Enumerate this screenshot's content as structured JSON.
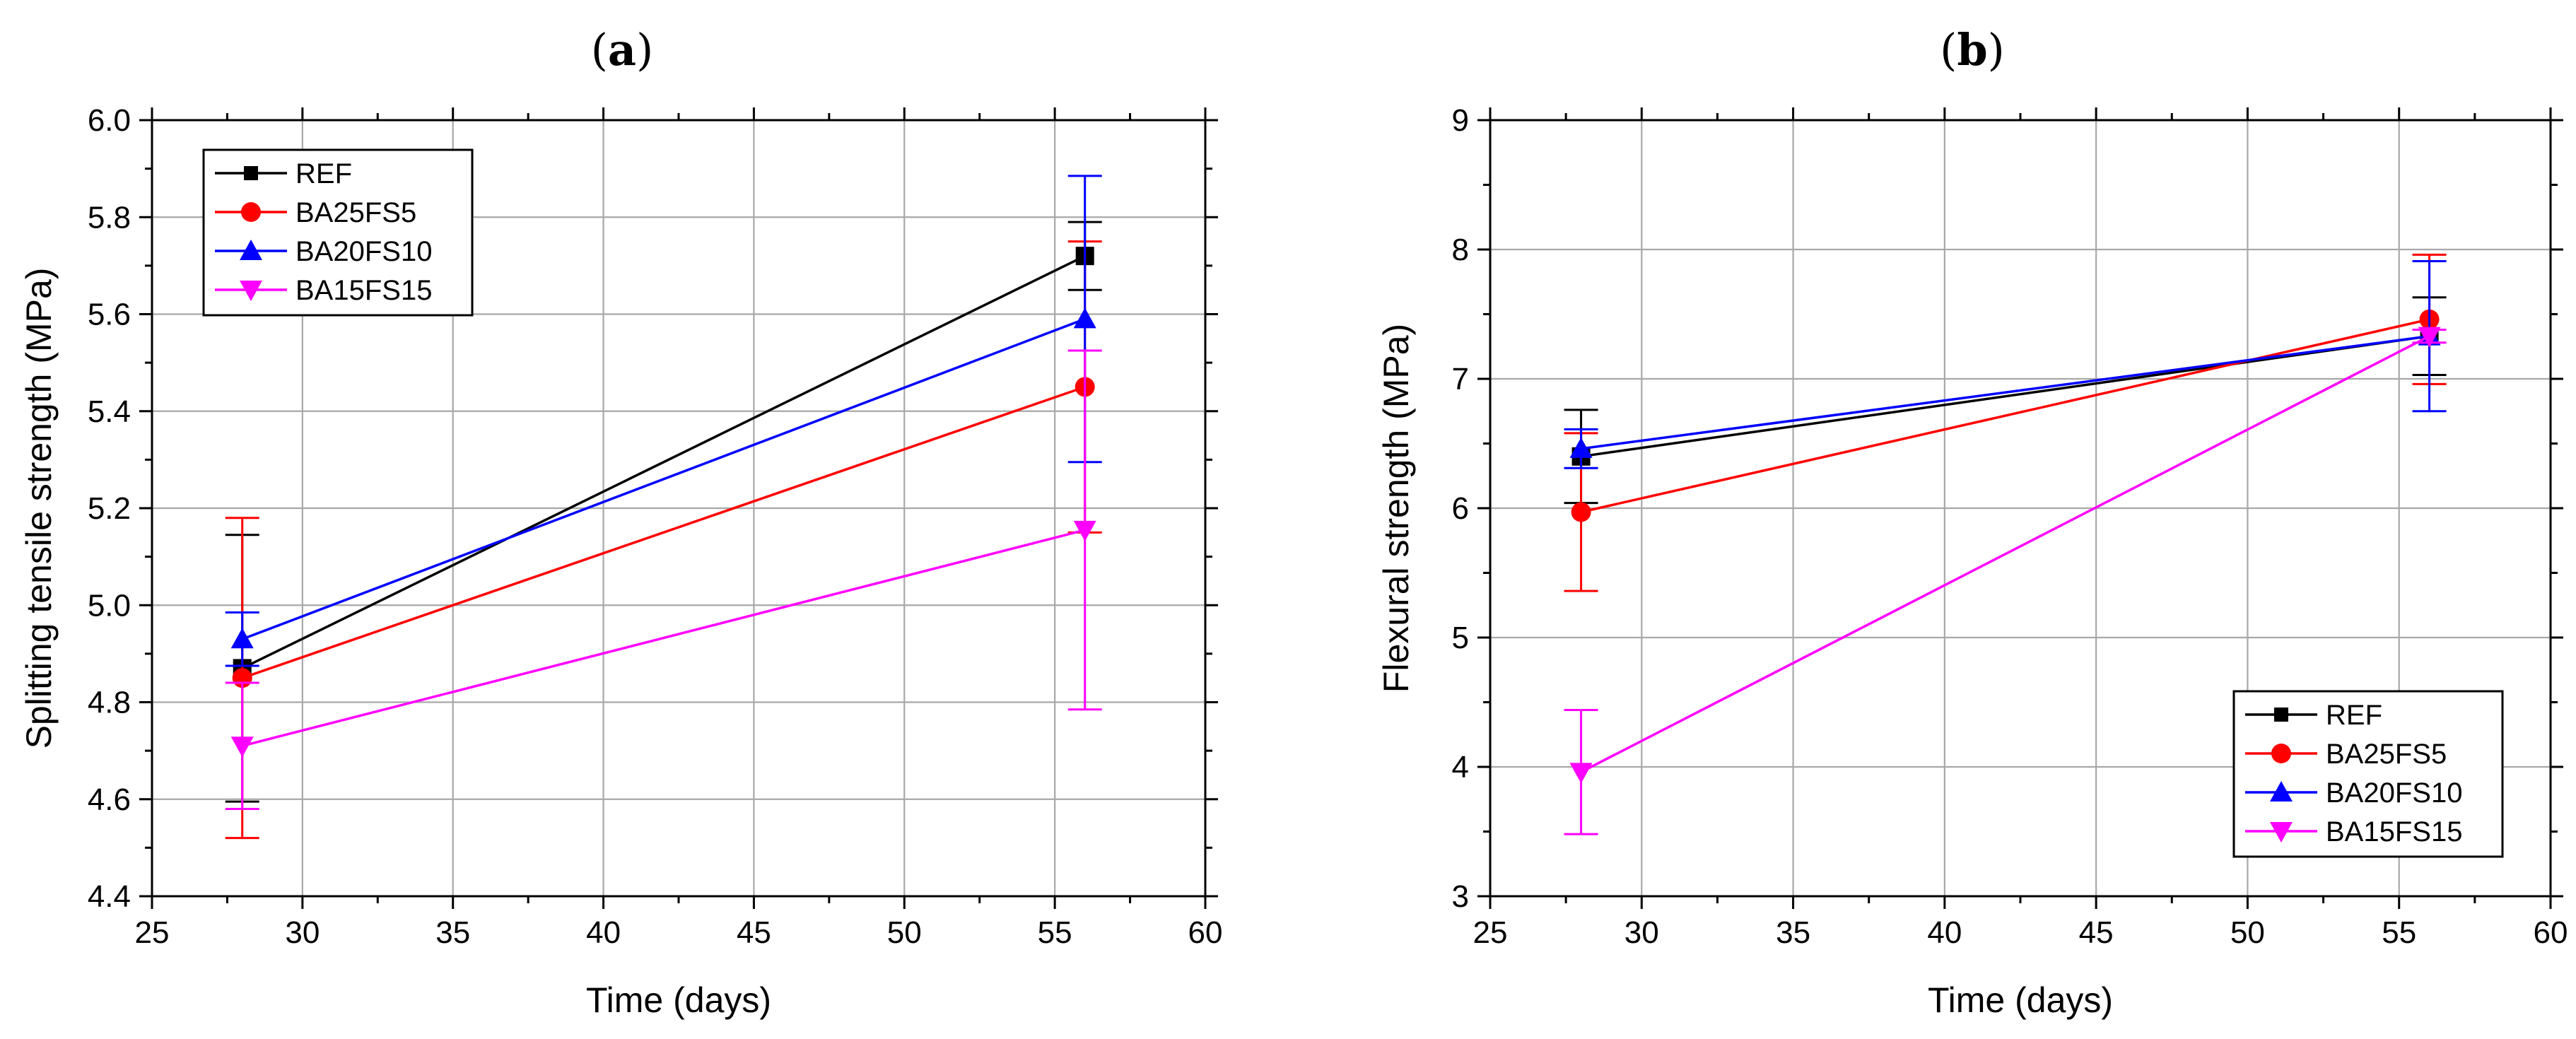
{
  "chart_data": [
    {
      "type": "line",
      "panel": "a",
      "title": "(a)",
      "xlabel": "Time (days)",
      "ylabel": "Splitting tensile strength (MPa)",
      "xlim": [
        25,
        60
      ],
      "ylim": [
        4.4,
        6.0
      ],
      "xticks": [
        25,
        30,
        35,
        40,
        45,
        50,
        55,
        60
      ],
      "yticks": [
        "4.4",
        "4.6",
        "4.8",
        "5.0",
        "5.2",
        "5.4",
        "5.6",
        "5.8",
        "6.0"
      ],
      "grid": true,
      "legend_position": "top-left",
      "x": [
        28,
        56
      ],
      "series": [
        {
          "name": "REF",
          "color": "#000000",
          "marker": "square",
          "values": [
            4.87,
            5.72
          ],
          "errors": [
            0.275,
            0.07
          ]
        },
        {
          "name": "BA25FS5",
          "color": "#ff0000",
          "marker": "circle",
          "values": [
            4.85,
            5.45
          ],
          "errors": [
            0.33,
            0.3
          ]
        },
        {
          "name": "BA20FS10",
          "color": "#0000ff",
          "marker": "triangle-up",
          "values": [
            4.93,
            5.59
          ],
          "errors": [
            0.055,
            0.295
          ]
        },
        {
          "name": "BA15FS15",
          "color": "#ff00ff",
          "marker": "triangle-down",
          "values": [
            4.71,
            5.155
          ],
          "errors": [
            0.13,
            0.37
          ]
        }
      ]
    },
    {
      "type": "line",
      "panel": "b",
      "title": "(b)",
      "xlabel": "Time (days)",
      "ylabel": "Flexural strength (MPa)",
      "xlim": [
        25,
        60
      ],
      "ylim": [
        3,
        9
      ],
      "xticks": [
        25,
        30,
        35,
        40,
        45,
        50,
        55,
        60
      ],
      "yticks": [
        "3",
        "4",
        "5",
        "6",
        "7",
        "8",
        "9"
      ],
      "grid": true,
      "legend_position": "bottom-right",
      "x": [
        28,
        56
      ],
      "series": [
        {
          "name": "REF",
          "color": "#000000",
          "marker": "square",
          "values": [
            6.4,
            7.33
          ],
          "errors": [
            0.36,
            0.3
          ]
        },
        {
          "name": "BA25FS5",
          "color": "#ff0000",
          "marker": "circle",
          "values": [
            5.97,
            7.46
          ],
          "errors": [
            0.61,
            0.5
          ]
        },
        {
          "name": "BA20FS10",
          "color": "#0000ff",
          "marker": "triangle-up",
          "values": [
            6.46,
            7.33
          ],
          "errors": [
            0.15,
            0.58
          ]
        },
        {
          "name": "BA15FS15",
          "color": "#ff00ff",
          "marker": "triangle-down",
          "values": [
            3.96,
            7.33
          ],
          "errors": [
            0.48,
            0.05
          ]
        }
      ]
    }
  ]
}
